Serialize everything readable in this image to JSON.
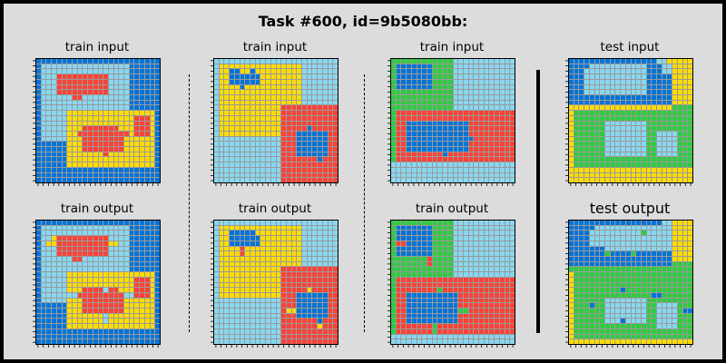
{
  "title": "Task #600, id=9b5080bb:",
  "labels": {
    "train_input": "train input",
    "train_output": "train output",
    "test_input": "test input",
    "test_output": "test output"
  },
  "palette": {
    "0": "#000000",
    "1": "#0074d9",
    "2": "#ff4136",
    "3": "#2ecc40",
    "4": "#ffdc00",
    "5": "#aaaaaa",
    "6": "#f012be",
    "7": "#ff851b",
    "8": "#87d8f1",
    "9": "#870c25"
  },
  "panels": [
    {
      "id": "p1-in",
      "label_key": "train_input",
      "grid": [
        "111111111111111111111111",
        "188888888888888888111111",
        "188888888888888888111111",
        "188822222222228888111111",
        "188822222222228888111111",
        "188822222222228888111111",
        "188822222222228888111111",
        "188888822888888888111111",
        "188888888888888888111111",
        "188888888888888888111111",
        "188888444444444444444441",
        "188888444444444444422241",
        "188888444444444444422241",
        "188888444222222244422241",
        "188888442222222222422241",
        "188888444222222224444441",
        "111111444222222224444441",
        "111111444222222224444441",
        "111111444444424444444441",
        "111111444444444444444441",
        "111111444444444444444441",
        "111111111111111111111111",
        "111111111111111111111111",
        "111111111111111111111111"
      ]
    },
    {
      "id": "p2-in",
      "label_key": "train_input",
      "grid": [
        "888888888888888888888888",
        "844444444444444448888888",
        "844114414444444448888888",
        "844111111444444448888888",
        "844111111444444448888888",
        "844441444444444448888888",
        "844444444444444448888888",
        "844444444444444448888888",
        "844444444444444448888888",
        "844444444444422222222222",
        "844444444444422222222222",
        "844444444444422222222222",
        "844444444444422222222222",
        "844444444444422222122222",
        "844444444444422211111122",
        "888888888888822211111122",
        "888888888888822211111122",
        "888888888888822211111122",
        "888888888888822211111122",
        "888888888888822222221222",
        "888888888888822222222222",
        "888888888888822222222222",
        "888888888888822222222222",
        "888888888888822222222222"
      ]
    },
    {
      "id": "p3-in",
      "label_key": "train_input",
      "grid": [
        "333333333333888888888888",
        "311111113333888888888888",
        "311111113333888888888888",
        "311111113333888888888888",
        "311111113333888888888888",
        "311111113333888888888888",
        "333333333333888888888888",
        "333333333333888888888888",
        "333333333333888888888888",
        "333333333333888888888888",
        "322222222222222222222222",
        "322222222222222222222222",
        "322111111111111222222222",
        "322111111111111222222222",
        "322111111111111222222222",
        "322111111111111122222222",
        "322111111111111222222222",
        "322111111111111222222222",
        "322222222212222222222222",
        "322222222222222222222222",
        "888888888888888888888888",
        "888888888888888888888888",
        "888888888888888888888888",
        "888888888888888888888888"
      ]
    },
    {
      "id": "p4-in",
      "label_key": "test_input",
      "grid": [
        "111111111111111118844444",
        "111188888888888111884444",
        "111888888888888111884444",
        "111888888888888111114444",
        "111888888888888111114444",
        "111888888888888111114444",
        "111888888888888111114444",
        "111111111111111111114444",
        "111111111111111111114444",
        "444444444444444444443333",
        "433333333333333333333333",
        "433333333333333333333333",
        "433333388888888333333333",
        "433333388888888333333333",
        "433333388888888338888333",
        "433333388888888338888333",
        "433333388888888338888333",
        "433333388888888338888333",
        "433333388888888338888333",
        "433333333333333333333333",
        "433333333333333333333333",
        "444444444444444444444444",
        "444444444444444444444444",
        "444444444444444444444444"
      ]
    },
    {
      "id": "p1-out",
      "label_key": "train_output",
      "grid": [
        "111111111111111111111111",
        "188888888888888888111111",
        "188888888888888888111111",
        "188422222222228888111111",
        "184422222222224488111111",
        "188822222222228888111111",
        "188822222222228888111111",
        "188888822888888888111111",
        "188888888888888888111111",
        "188888888888888888111111",
        "188888444444444444444441",
        "188888444444444444422241",
        "188888444444444444422241",
        "188888444222282244422241",
        "188888882222222228822241",
        "188888444222222224444441",
        "111111444222222224444441",
        "111111444222222224444441",
        "111111444444484444444441",
        "111111444444484444444441",
        "111111444444444444444441",
        "111111111111111111111111",
        "111111111111111111111111",
        "111111111111111111111111"
      ]
    },
    {
      "id": "p2-out",
      "label_key": "train_output",
      "grid": [
        "888888888888888888888888",
        "844444444444444448888888",
        "844111114444444448888888",
        "844111111444444448888888",
        "844111111444444448888888",
        "844442444444444448888888",
        "844442444444444448888888",
        "844444444444444448888888",
        "844444444444444448888888",
        "844444444444422222222222",
        "844444444444422222222222",
        "844444444444422222222222",
        "844444444444422222222222",
        "844444444444422222422222",
        "844444444444422211111122",
        "888888888888822211111122",
        "888888888888822211111122",
        "888888888888824411111122",
        "888888888888822211111122",
        "888888888888822222221222",
        "888888888888822222224222",
        "888888888888822222222222",
        "888888888888822222222222",
        "888888888888822222222222"
      ]
    },
    {
      "id": "p3-out",
      "label_key": "train_output",
      "grid": [
        "333333333333888888888888",
        "311111113333888888888888",
        "311111113333888888888888",
        "311111113333888888888888",
        "322111113333888888888888",
        "311111113333888888888888",
        "311111113333888888888888",
        "333333323333888888888888",
        "333333323333888888888888",
        "333333333333888888888888",
        "333333333333888888888888",
        "322222222222222222222222",
        "322222222222222222222222",
        "322222222322222222222222",
        "322111111111122222222222",
        "322111111111122222222222",
        "322111111111122222222222",
        "322111111111133222222222",
        "322111111111122222222222",
        "322111111111122222222222",
        "322222223222222222222222",
        "322222223222222222222222",
        "888888888888888888888888",
        "888888888888888888888888"
      ]
    },
    {
      "id": "p4-out",
      "label_key": "test_output",
      "grid": [
        "111111111111111111884444",
        "111118888888888888884444",
        "111188888888883888884444",
        "111188888888888888884444",
        "111188888888888888884444",
        "111111188888888888884444",
        "111111131111311111114444",
        "111111111111111111114444",
        "111111111111111111113333",
        "333333333333333333333333",
        "433333333333333333333333",
        "433333333333333333333333",
        "433333333333333333333333",
        "433333333313333333333333",
        "433333333333333311333333",
        "433333388888888333333333",
        "433313388888888338888333",
        "433333388888888338888311",
        "433333388888888338888333",
        "433333388818888338888333",
        "433333333333333338888333",
        "433333333333333333333333",
        "433333333333333333333333",
        "444444444444444444444444"
      ]
    }
  ]
}
